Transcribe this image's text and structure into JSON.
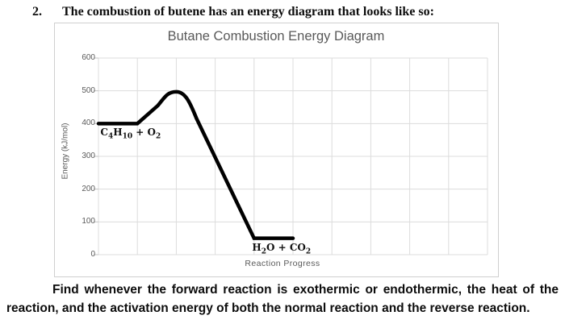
{
  "question": {
    "number": "2.",
    "text": "The combustion of butene has an energy diagram that looks like so:"
  },
  "instruction": {
    "line1": "Find whenever the forward reaction is exothermic or endothermic, the heat of the",
    "line2": "reaction, and the activation energy of both the normal reaction and the reverse reaction."
  },
  "chart_data": {
    "type": "line",
    "title": "Butane Combustion Energy Diagram",
    "xlabel": "Reaction Progress",
    "ylabel": "Energy (kJ/mol)",
    "ylim": [
      0,
      600
    ],
    "yticks": [
      600,
      500,
      400,
      300,
      200,
      100,
      0
    ],
    "x_grid_divisions": 10,
    "grid": true,
    "legend": "none",
    "series": [
      {
        "name": "reaction-energy-path",
        "color": "#000000",
        "x_units": "gridline-index",
        "x": [
          0,
          1,
          2,
          4,
          5
        ],
        "y": [
          400,
          400,
          497,
          50,
          50
        ],
        "point_roles": [
          "reactants-plateau-start",
          "reactants-plateau-end",
          "transition-state-peak",
          "products-plateau-start",
          "products-plateau-end"
        ]
      }
    ],
    "annotations": [
      {
        "label": "C4H10 + O2",
        "x": 0.05,
        "energy": 400,
        "placement": "below-line"
      },
      {
        "label": "H2O + CO2",
        "x": 3.95,
        "energy": 50,
        "placement": "below-line"
      }
    ],
    "readings": {
      "reactant_energy_kj_mol": 400,
      "peak_energy_kj_mol": 497,
      "product_energy_kj_mol": 50
    }
  },
  "colors": {
    "grid": "#dcdcdc",
    "tick": "#c4c4c4",
    "chart_border": "#cfcfcf",
    "chart_text": "#595959",
    "curve": "#050505",
    "body_text": "#0d0d0d"
  }
}
